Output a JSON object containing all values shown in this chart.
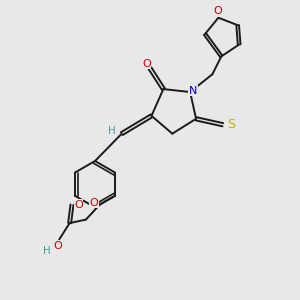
{
  "bg_color": "#e8e8e8",
  "bond_color": "#1a1a1a",
  "N_color": "#0000cc",
  "O_color": "#cc0000",
  "S_color": "#b8b800",
  "H_color": "#4a9a9a",
  "line_width": 1.4,
  "dbo": 0.06,
  "xlim": [
    0,
    10
  ],
  "ylim": [
    0,
    10
  ]
}
